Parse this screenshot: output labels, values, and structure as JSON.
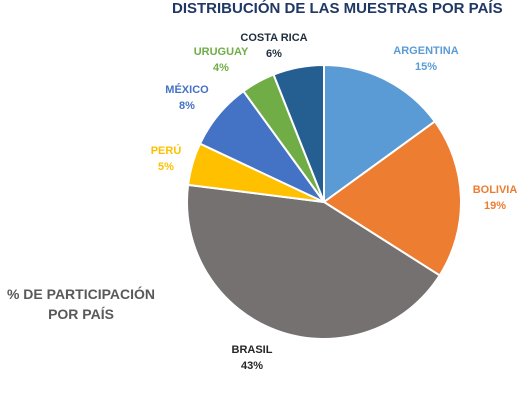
{
  "chart_data": {
    "type": "pie",
    "title": "DISTRIBUCIÓN DE LAS MUESTRAS POR PAÍS",
    "caption_line1": "% DE PARTICIPACIÓN",
    "caption_line2": "POR PAÍS",
    "slices": [
      {
        "label": "ARGENTINA",
        "value": 15,
        "pct_label": "15%",
        "color": "#5b9bd5"
      },
      {
        "label": "BOLIVIA",
        "value": 19,
        "pct_label": "19%",
        "color": "#ed7d31"
      },
      {
        "label": "BRASIL",
        "value": 43,
        "pct_label": "43%",
        "color": "#767171"
      },
      {
        "label": "PERÚ",
        "value": 5,
        "pct_label": "5%",
        "color": "#ffc000"
      },
      {
        "label": "MÉXICO",
        "value": 8,
        "pct_label": "8%",
        "color": "#4472c4"
      },
      {
        "label": "URUGUAY",
        "value": 4,
        "pct_label": "4%",
        "color": "#70ad47"
      },
      {
        "label": "COSTA RICA",
        "value": 6,
        "pct_label": "6%",
        "color": "#255e91"
      }
    ],
    "label_colors": {
      "ARGENTINA": "#5b9bd5",
      "BOLIVIA": "#ed7d31",
      "BRASIL": "#262626",
      "PERÚ": "#ffc000",
      "MÉXICO": "#4472c4",
      "URUGUAY": "#70ad47",
      "COSTA RICA": "#1f2d3d"
    }
  }
}
